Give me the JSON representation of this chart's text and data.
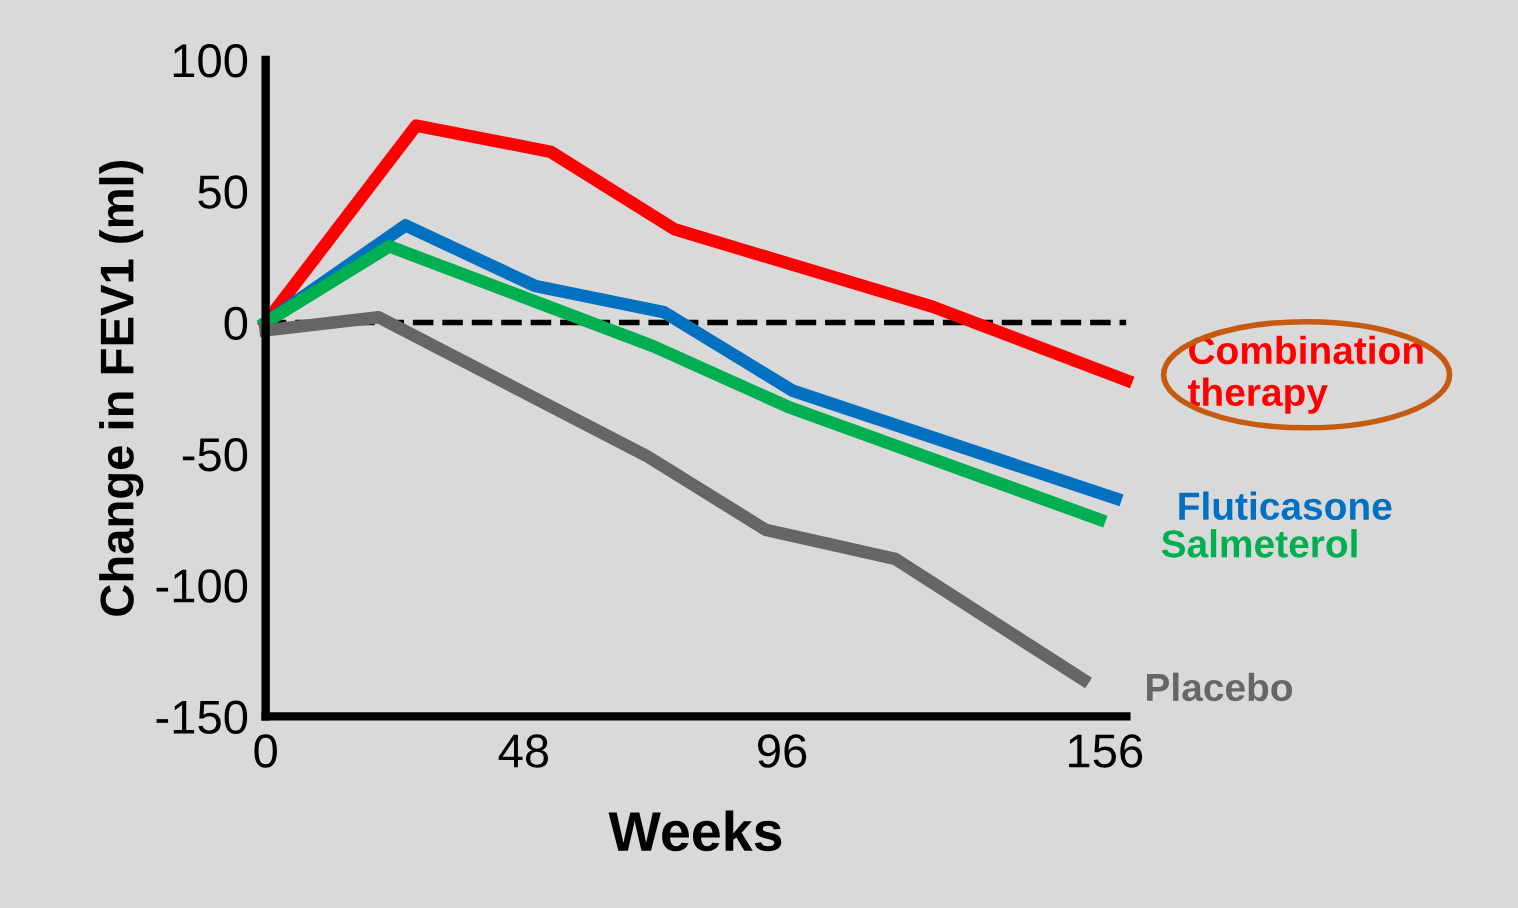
{
  "chart_data": {
    "type": "line",
    "xlabel": "Weeks",
    "ylabel": "Change in FEV1 (ml)",
    "xlim": [
      0,
      160
    ],
    "xticks": [
      0,
      48,
      96,
      156
    ],
    "ylim": [
      -150,
      100
    ],
    "yticks": [
      100,
      50,
      0,
      -50,
      -100,
      -150
    ],
    "grid": false,
    "legend": false,
    "marker": "none",
    "line_style": "solid",
    "ref_lines": [
      {
        "axis": "y",
        "value": 0,
        "color": "#000000",
        "line_style": "dashed"
      }
    ],
    "series": [
      {
        "name": "Combination therapy",
        "color": "#ff0000",
        "x": [
          0,
          28,
          53,
          76,
          124,
          160
        ],
        "values": [
          0,
          75,
          65,
          35.5,
          6,
          -22
        ]
      },
      {
        "name": "Fluticasone",
        "color": "#0070c0",
        "x": [
          0,
          26,
          50,
          74,
          98,
          158
        ],
        "values": [
          0,
          37,
          14,
          4,
          -26,
          -67
        ]
      },
      {
        "name": "Salmeterol",
        "color": "#00b050",
        "x": [
          0,
          23,
          72,
          97,
          155
        ],
        "values": [
          0,
          29,
          -9,
          -32,
          -75
        ]
      },
      {
        "name": "Placebo",
        "color": "#666666",
        "x": [
          0,
          21,
          71,
          93,
          117,
          152
        ],
        "values": [
          -3,
          2,
          -51,
          -79,
          -90,
          -136
        ]
      }
    ]
  }
}
